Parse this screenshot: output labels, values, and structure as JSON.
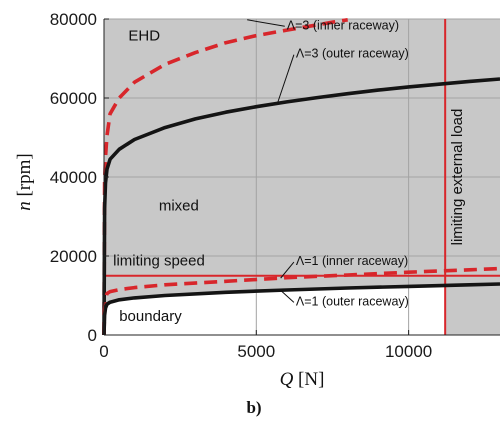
{
  "chart_data": {
    "type": "line",
    "xlabel": {
      "symbol": "Q",
      "unit": " [N]"
    },
    "ylabel": {
      "symbol": "n",
      "unit": " [rpm]"
    },
    "xlim": [
      0,
      13000
    ],
    "ylim": [
      0,
      80000
    ],
    "x_ticks": [
      0,
      5000,
      10000
    ],
    "y_ticks": [
      0,
      20000,
      40000,
      60000,
      80000
    ],
    "grid": true,
    "panel_label": "b)",
    "colors": {
      "red": "#d8262b",
      "black": "#141414",
      "shade": "#c8c8c8",
      "grid": "#a3a3a3"
    },
    "series": [
      {
        "name": "Λ=3 (inner raceway)",
        "color": "red",
        "dash": true,
        "x": [
          0,
          20,
          50,
          100,
          200,
          500,
          1000,
          2000,
          3000,
          4000,
          5000,
          6000,
          7000,
          7500,
          8000
        ],
        "y": [
          0,
          39000,
          45000,
          50500,
          56000,
          60000,
          64000,
          68500,
          71500,
          74000,
          75800,
          77200,
          78500,
          79200,
          79800
        ]
      },
      {
        "name": "Λ=3 (outer raceway)",
        "color": "black",
        "dash": false,
        "x": [
          0,
          20,
          50,
          100,
          200,
          500,
          1000,
          2000,
          3000,
          4000,
          5000,
          6000,
          7000,
          8000,
          9000,
          10000,
          11000,
          12000,
          13000
        ],
        "y": [
          0,
          32000,
          38500,
          42000,
          44500,
          47000,
          49500,
          52500,
          54700,
          56400,
          57800,
          59000,
          60100,
          61100,
          62000,
          62800,
          63500,
          64200,
          64800
        ]
      },
      {
        "name": "Λ=1 (inner raceway)",
        "color": "red",
        "dash": true,
        "x": [
          0,
          20,
          50,
          100,
          200,
          500,
          1000,
          2000,
          4000,
          6000,
          8000,
          10000,
          12000,
          13000
        ],
        "y": [
          0,
          6500,
          9000,
          10500,
          11000,
          11500,
          12000,
          12700,
          13600,
          14500,
          15200,
          15900,
          16500,
          16800
        ]
      },
      {
        "name": "Λ=1 (outer raceway)",
        "color": "black",
        "dash": false,
        "x": [
          0,
          20,
          50,
          100,
          200,
          500,
          1000,
          2000,
          4000,
          6000,
          8000,
          10000,
          12000,
          13000
        ],
        "y": [
          0,
          5000,
          6800,
          7800,
          8300,
          8900,
          9400,
          10000,
          10800,
          11400,
          11900,
          12300,
          12700,
          12900
        ]
      }
    ],
    "limits": {
      "speed": {
        "value": 15000,
        "label": "limiting speed"
      },
      "load": {
        "value": 11200,
        "label": "limiting external load"
      }
    },
    "regions": {
      "ehd": "EHD",
      "mixed": "mixed",
      "boundary": "boundary"
    },
    "annotations": [
      {
        "text": "Λ=3 (inner raceway)",
        "x": 6000,
        "y": 77400,
        "ax": 4700,
        "ay": 79800
      },
      {
        "text": "Λ=3 (outer raceway)",
        "x": 6300,
        "y": 70200,
        "ax": 5700,
        "ay": 58800
      },
      {
        "text": "Λ=1 (inner raceway)",
        "x": 6300,
        "y": 17700,
        "ax": 5800,
        "ay": 14400
      },
      {
        "text": "Λ=1 (outer raceway)",
        "x": 6300,
        "y": 7500,
        "ax": 5800,
        "ay": 11300
      }
    ]
  }
}
